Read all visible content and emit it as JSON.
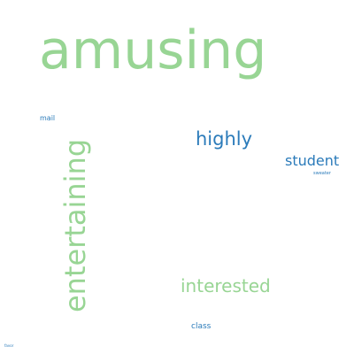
{
  "colors": {
    "background": "#ffffff",
    "green": "#98d594",
    "blue": "#2b7bba"
  },
  "words": {
    "amusing": "amusing",
    "entertaining": "entertaining",
    "highly": "highly",
    "student": "student",
    "sweater": "sweater",
    "mail": "mail",
    "interested": "interested",
    "class": "class",
    "favor": "favor"
  }
}
